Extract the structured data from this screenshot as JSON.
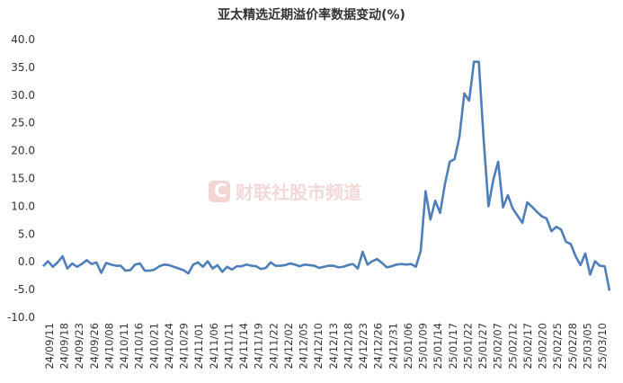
{
  "chart_data": {
    "type": "line",
    "title": "亚太精选近期溢价率数据变动(%)",
    "xlabel": "",
    "ylabel": "",
    "ylim": [
      -10,
      40
    ],
    "yticks": [
      "40.0",
      "35.0",
      "30.0",
      "25.0",
      "20.0",
      "15.0",
      "10.0",
      "5.0",
      "0.0",
      "-5.0",
      "-10.0"
    ],
    "xtick_labels": [
      "24/09/11",
      "24/09/18",
      "24/09/23",
      "24/09/26",
      "24/10/08",
      "24/10/11",
      "24/10/16",
      "24/10/21",
      "24/10/24",
      "24/10/29",
      "24/11/01",
      "24/11/06",
      "24/11/11",
      "24/11/14",
      "24/11/19",
      "24/11/22",
      "24/12/02",
      "24/12/05",
      "24/12/10",
      "24/12/13",
      "24/12/18",
      "24/12/23",
      "24/12/26",
      "24/12/31",
      "25/01/06",
      "25/01/09",
      "25/01/14",
      "25/01/17",
      "25/01/22",
      "25/01/27",
      "25/02/07",
      "25/02/12",
      "25/02/17",
      "25/02/20",
      "25/02/25",
      "25/02/28",
      "25/03/05",
      "25/03/10"
    ],
    "grid": false,
    "color": "#4f7fb8",
    "series": [
      {
        "values": [
          -0.8,
          0.1,
          -0.9,
          -0.1,
          1.0,
          -1.2,
          -0.3,
          -0.9,
          -0.4,
          0.3,
          -0.4,
          -0.1,
          -2.0,
          -0.2,
          -0.5,
          -0.7,
          -0.7,
          -1.6,
          -1.5,
          -0.5,
          -0.3,
          -1.6,
          -1.6,
          -1.4,
          -0.8,
          -0.5,
          -0.6,
          -0.9,
          -1.2,
          -1.5,
          -2.1,
          -0.5,
          -0.1,
          -0.9,
          0.1,
          -1.2,
          -0.6,
          -1.8,
          -0.9,
          -1.4,
          -0.8,
          -0.8,
          -0.5,
          -0.7,
          -0.8,
          -1.3,
          -1.1,
          -0.1,
          -0.7,
          -0.7,
          -0.6,
          -0.3,
          -0.5,
          -0.8,
          -0.5,
          -0.6,
          -0.7,
          -1.1,
          -0.9,
          -0.7,
          -0.7,
          -1.0,
          -0.9,
          -0.6,
          -0.4,
          -1.2,
          1.8,
          -0.5,
          0.1,
          0.5,
          -0.2,
          -1.0,
          -0.8,
          -0.5,
          -0.4,
          -0.5,
          -0.4,
          -0.9,
          2.0,
          12.7,
          7.6,
          11.0,
          8.8,
          14.0,
          18.0,
          18.5,
          22.5,
          30.3,
          29.0,
          36.0,
          36.0,
          22.0,
          10.0,
          14.8,
          18.0,
          9.8,
          12.0,
          9.6,
          8.3,
          7.0,
          10.7,
          9.9,
          9.0,
          8.2,
          7.8,
          5.5,
          6.3,
          5.8,
          3.6,
          3.2,
          1.0,
          -0.6,
          1.5,
          -2.3,
          0.1,
          -0.7,
          -0.8,
          -5.2
        ]
      }
    ],
    "watermark": "财联社股市频道"
  }
}
